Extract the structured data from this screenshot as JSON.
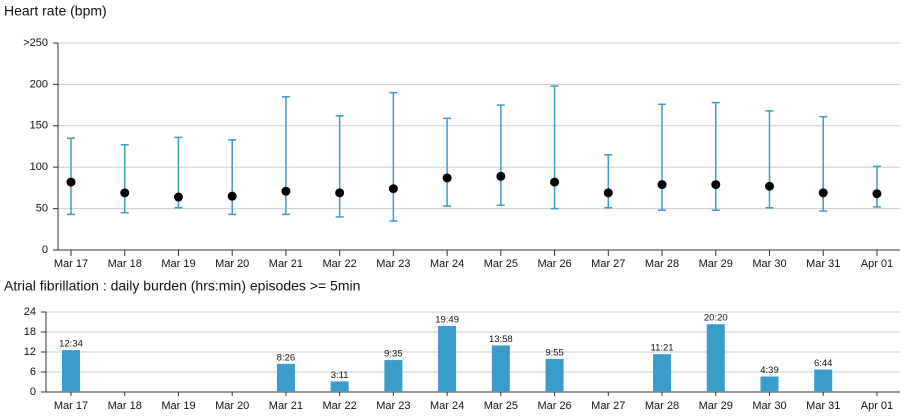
{
  "chart_data": [
    {
      "type": "range",
      "title": "Heart rate (bpm)",
      "categories": [
        "Mar 17",
        "Mar 18",
        "Mar 19",
        "Mar 20",
        "Mar 21",
        "Mar 22",
        "Mar 23",
        "Mar 24",
        "Mar 25",
        "Mar 26",
        "Mar 27",
        "Mar 28",
        "Mar 29",
        "Mar 30",
        "Mar 31",
        "Apr 01"
      ],
      "low": [
        43,
        45,
        51,
        43,
        43,
        40,
        35,
        53,
        54,
        50,
        51,
        48,
        48,
        51,
        47,
        52
      ],
      "high": [
        135,
        127,
        136,
        133,
        185,
        162,
        190,
        159,
        175,
        198,
        115,
        176,
        178,
        168,
        161,
        101
      ],
      "mean": [
        82,
        69,
        64,
        65,
        71,
        69,
        74,
        87,
        89,
        82,
        69,
        79,
        79,
        77,
        69,
        68
      ],
      "color": "#3a9cc8",
      "mean_color": "#000000",
      "ylim": [
        0,
        250
      ],
      "yticks": [
        0,
        50,
        100,
        150,
        200,
        {
          "value": 250,
          "label": ">250"
        }
      ],
      "grid": true
    },
    {
      "type": "bar",
      "title": "Atrial fibrillation : daily burden (hrs:min) episodes >= 5min",
      "categories": [
        "Mar 17",
        "Mar 18",
        "Mar 19",
        "Mar 20",
        "Mar 21",
        "Mar 22",
        "Mar 23",
        "Mar 24",
        "Mar 25",
        "Mar 26",
        "Mar 27",
        "Mar 28",
        "Mar 29",
        "Mar 30",
        "Mar 31",
        "Apr 01"
      ],
      "values": [
        12.57,
        null,
        null,
        null,
        8.43,
        3.18,
        9.58,
        19.82,
        13.97,
        9.92,
        null,
        11.35,
        20.33,
        4.65,
        6.73,
        null
      ],
      "value_labels": [
        "12:34",
        null,
        null,
        null,
        "8:26",
        "3:11",
        "9:35",
        "19:49",
        "13:58",
        "9:55",
        null,
        "11:21",
        "20:20",
        "4:39",
        "6:44",
        null
      ],
      "color": "#3a9cc8",
      "ylim": [
        0,
        24
      ],
      "yticks": [
        0,
        6,
        12,
        18,
        24
      ],
      "grid": true
    }
  ]
}
